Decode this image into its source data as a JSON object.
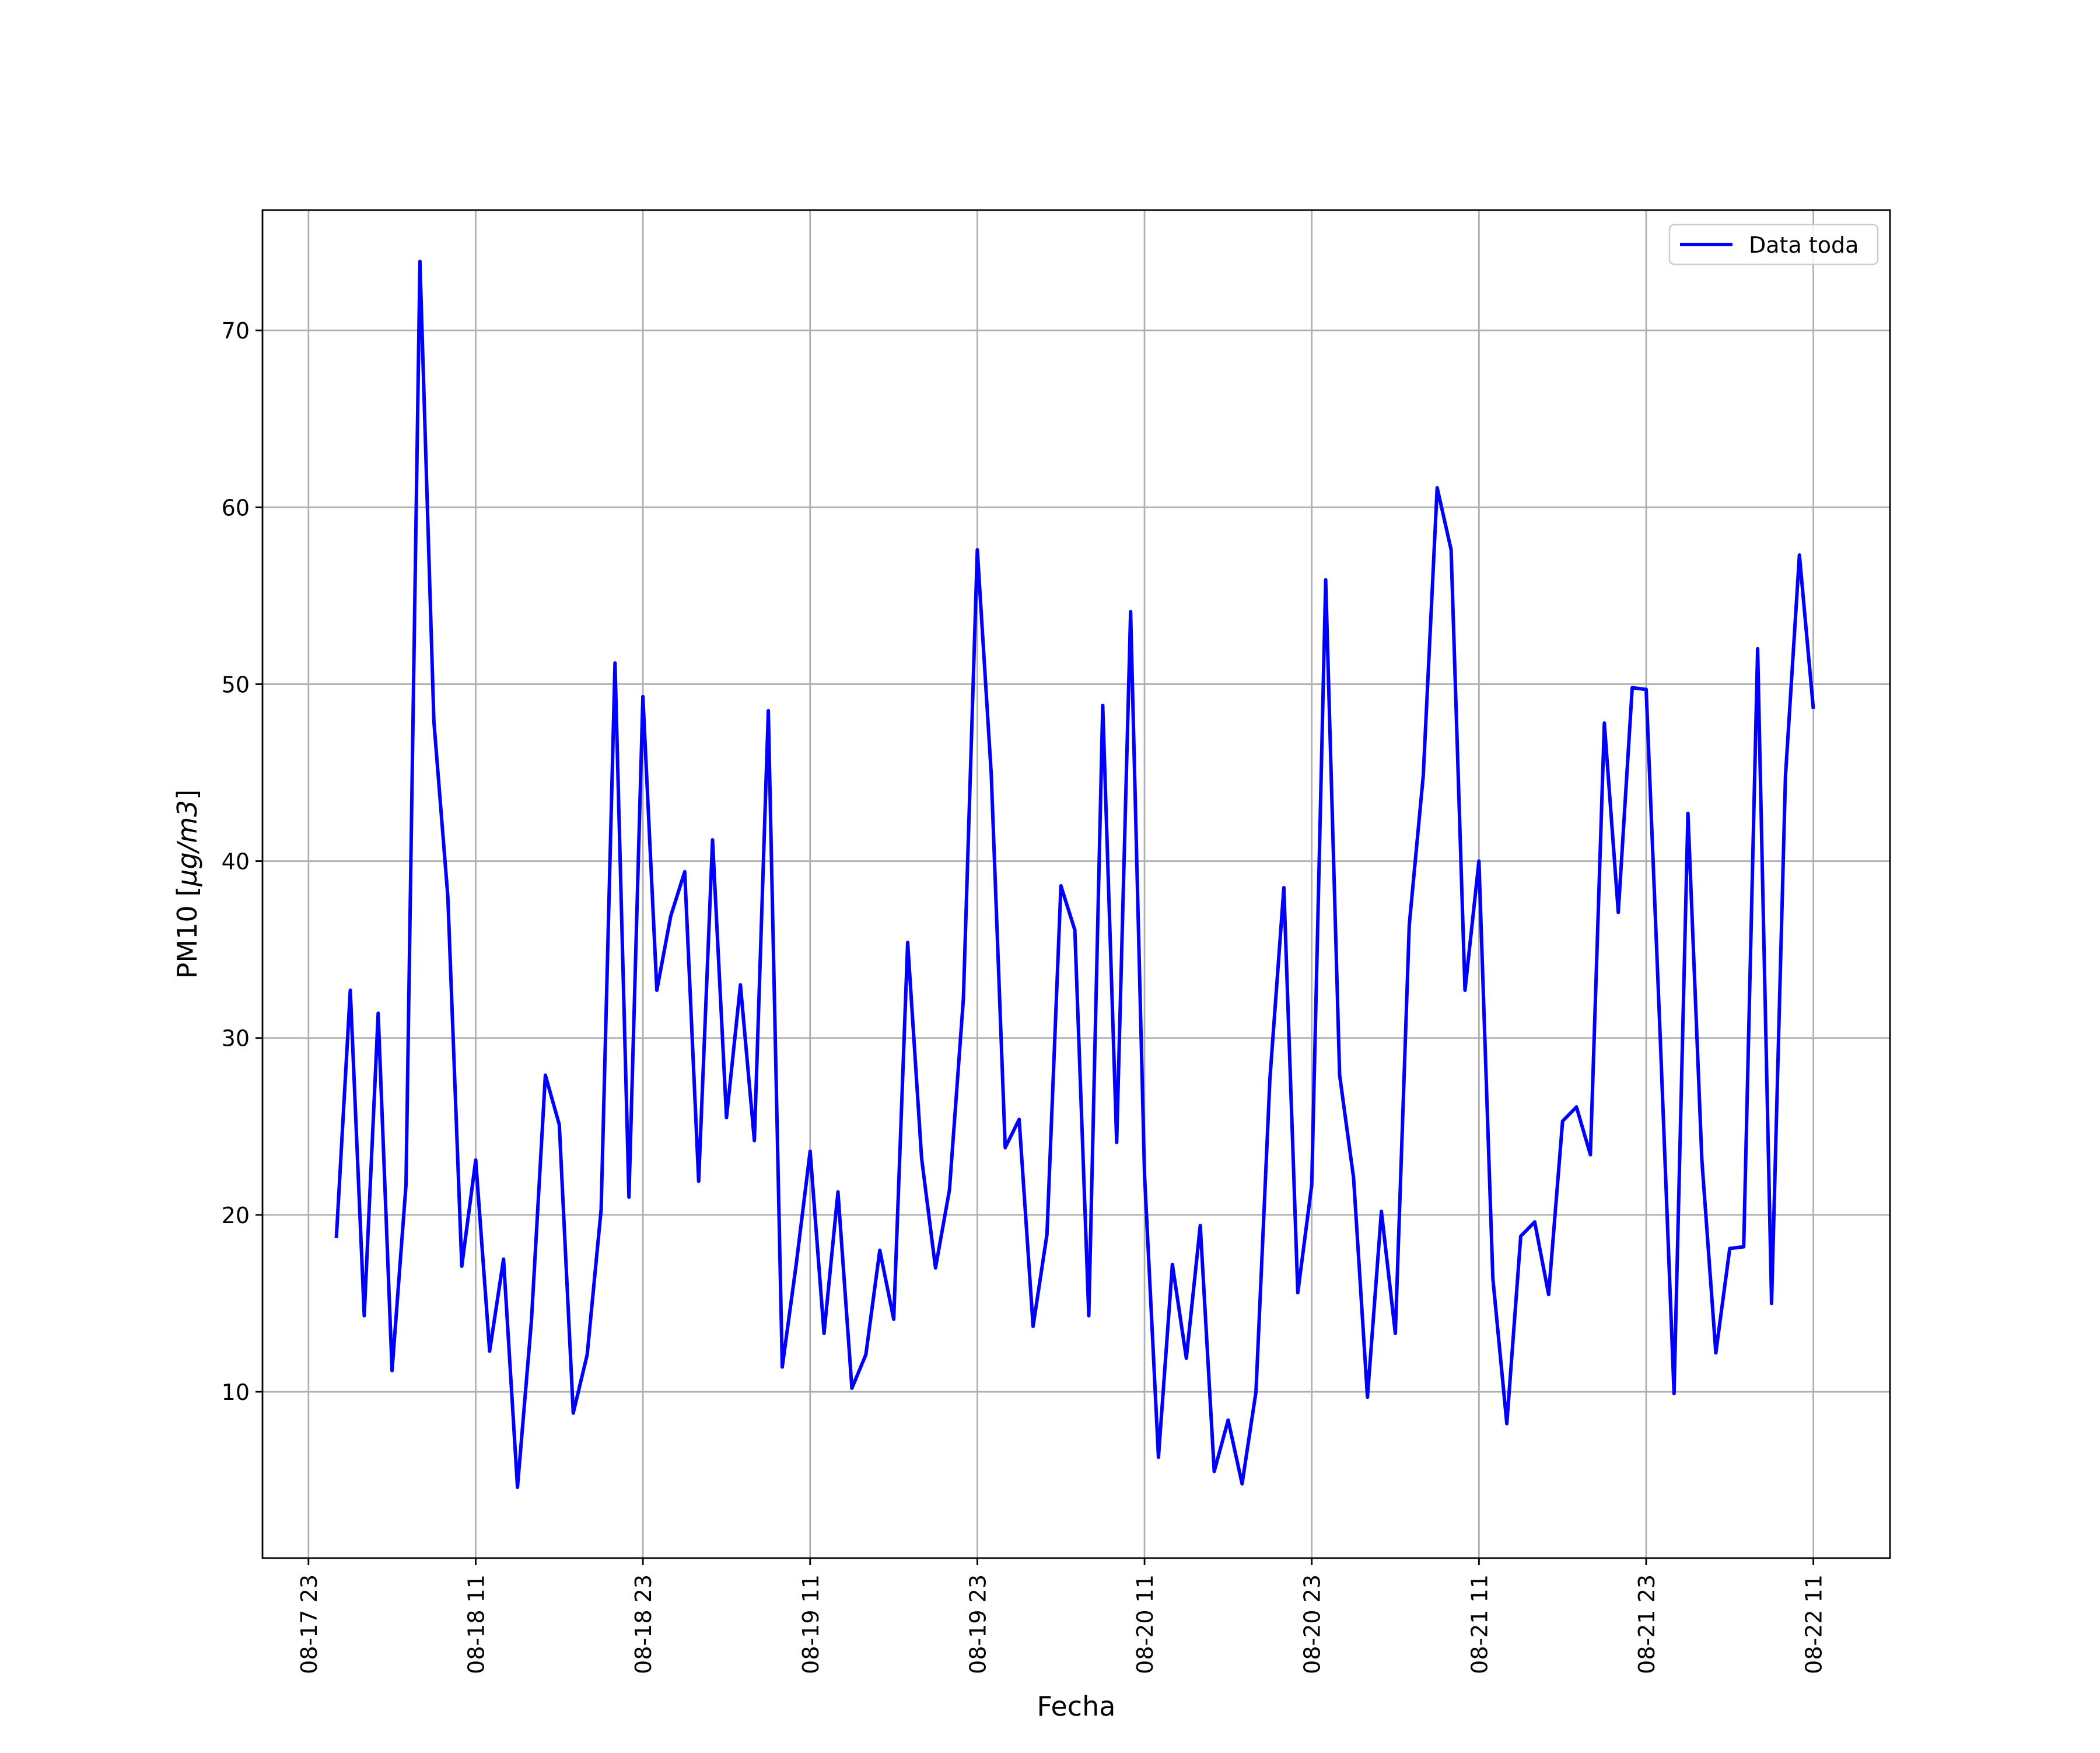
{
  "chart_data": {
    "type": "line",
    "title": "",
    "xlabel": "Fecha",
    "ylabel": "PM10 [μg/m3]",
    "ylabel_parts": {
      "prefix": "PM10 [",
      "unit": "μg/m3",
      "suffix": "]"
    },
    "x_unit": "hours since 2020-08-17 23:00",
    "x_ticks": [
      {
        "value": 0,
        "label": "08-17 23"
      },
      {
        "value": 12,
        "label": "08-18 11"
      },
      {
        "value": 24,
        "label": "08-18 23"
      },
      {
        "value": 36,
        "label": "08-19 11"
      },
      {
        "value": 48,
        "label": "08-19 23"
      },
      {
        "value": 60,
        "label": "08-20 11"
      },
      {
        "value": 72,
        "label": "08-20 23"
      },
      {
        "value": 84,
        "label": "08-21 11"
      },
      {
        "value": 96,
        "label": "08-21 23"
      },
      {
        "value": 108,
        "label": "08-22 11"
      }
    ],
    "y_ticks": [
      10,
      20,
      30,
      40,
      50,
      60,
      70
    ],
    "xlim": [
      -3.3,
      113.5
    ],
    "ylim": [
      0.6,
      76.8
    ],
    "grid": true,
    "legend": {
      "position": "top-right",
      "entries": [
        "Data toda"
      ]
    },
    "series": [
      {
        "name": "Data toda",
        "color": "#0000ff",
        "x": [
          2,
          3,
          4,
          5,
          6,
          7,
          8,
          9,
          10,
          11,
          12,
          13,
          14,
          15,
          16,
          17,
          18,
          19,
          20,
          21,
          22,
          23,
          24,
          25,
          26,
          27,
          28,
          29,
          30,
          31,
          32,
          33,
          34,
          35,
          36,
          37,
          38,
          39,
          40,
          41,
          42,
          43,
          44,
          45,
          46,
          47,
          48,
          49,
          50,
          51,
          52,
          53,
          54,
          55,
          56,
          57,
          58,
          59,
          60,
          61,
          62,
          63,
          64,
          65,
          66,
          67,
          68,
          69,
          70,
          71,
          72,
          73,
          74,
          75,
          76,
          77,
          78,
          79,
          80,
          81,
          82,
          83,
          84,
          85,
          86,
          87,
          88,
          89,
          90,
          91,
          92,
          93,
          94,
          95,
          96,
          97,
          98,
          99,
          100,
          101,
          102,
          103,
          104,
          105,
          106,
          107,
          108
        ],
        "y": [
          18.7,
          32.7,
          14.3,
          31.4,
          11.2,
          21.7,
          73.9,
          47.9,
          38.0,
          17.1,
          23.1,
          12.3,
          17.5,
          4.6,
          14.0,
          27.9,
          25.1,
          8.8,
          12.1,
          20.3,
          51.2,
          21.0,
          49.3,
          32.7,
          36.9,
          39.4,
          21.9,
          41.2,
          25.5,
          33.0,
          24.2,
          48.5,
          11.4,
          17.2,
          23.6,
          13.3,
          21.3,
          10.2,
          12.1,
          18.0,
          14.1,
          35.4,
          23.2,
          17.0,
          21.4,
          32.2,
          57.6,
          44.9,
          23.8,
          25.4,
          13.7,
          18.9,
          38.6,
          36.1,
          14.3,
          48.8,
          24.1,
          54.1,
          22.3,
          6.3,
          17.2,
          11.9,
          19.4,
          5.5,
          8.4,
          4.8,
          10.0,
          27.7,
          38.5,
          15.6,
          21.7,
          55.9,
          27.9,
          22.1,
          9.7,
          20.2,
          13.3,
          36.4,
          44.8,
          61.1,
          57.6,
          32.7,
          40.0,
          16.4,
          8.2,
          18.8,
          19.6,
          15.5,
          25.3,
          26.1,
          23.4,
          47.8,
          37.1,
          49.8,
          49.7,
          30.2,
          9.9,
          42.7,
          23.1,
          12.2,
          18.1,
          18.2,
          52.0,
          15.0,
          44.8,
          57.3,
          48.6
        ]
      }
    ]
  }
}
